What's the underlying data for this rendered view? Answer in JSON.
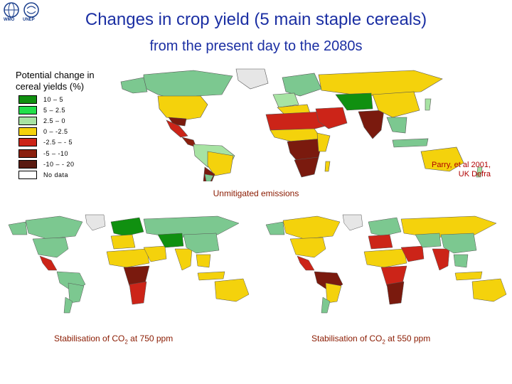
{
  "logos": {
    "left_text": "WMO",
    "right_text": "UNEP"
  },
  "title": "Changes in crop yield (5 main staple cereals)",
  "subtitle": "from the present day to the 2080s",
  "legend": {
    "title_line1": "Potential change in",
    "title_line2": "cereal yields (%)",
    "items": [
      {
        "label": "10 – 5",
        "color": "#109010"
      },
      {
        "label": "5 – 2.5",
        "color": "#22e04a"
      },
      {
        "label": "2.5 – 0",
        "color": "#a7e3a3"
      },
      {
        "label": "0 – -2.5",
        "color": "#f4d20c"
      },
      {
        "label": "-2.5 – - 5",
        "color": "#cc2418"
      },
      {
        "label": "-5 – -10",
        "color": "#8a1f0e"
      },
      {
        "label": "-10 – - 20",
        "color": "#5a1a10"
      },
      {
        "label": "No data",
        "color": "#ffffff"
      }
    ]
  },
  "citation": {
    "line1": "Parry, et al 2001,",
    "line2": "UK Defra"
  },
  "captions": {
    "unmitigated": "Unmitigated emissions",
    "stab750_prefix": "Stabilisation of CO",
    "stab750_sub": "2",
    "stab750_suffix": " at 750 ppm",
    "stab550_prefix": "Stabilisation of CO",
    "stab550_sub": "2",
    "stab550_suffix": " at 550 ppm"
  },
  "colors": {
    "title": "#1b2fa3",
    "caption": "#8a1a00",
    "citation": "#b00000",
    "ocean": "#ffffff",
    "outline": "#555555"
  }
}
